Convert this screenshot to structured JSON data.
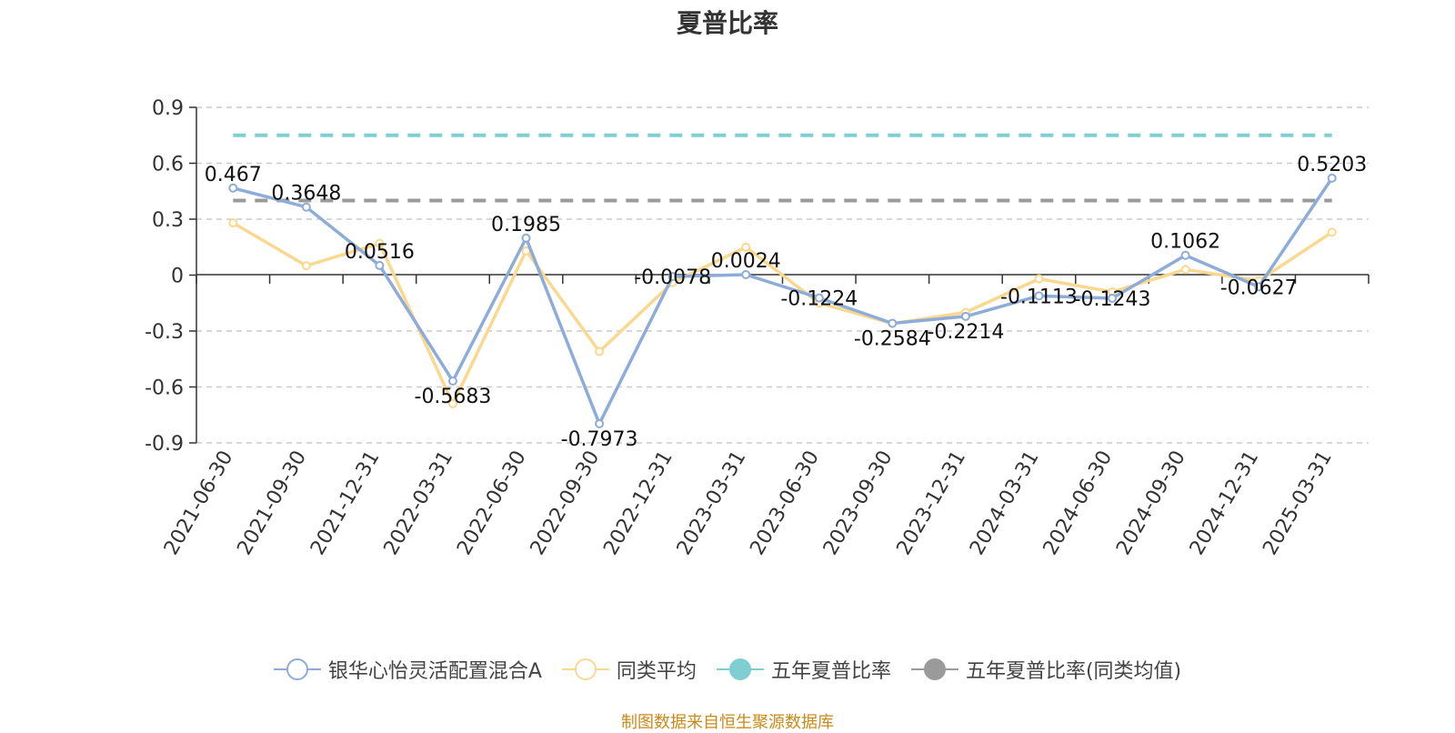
{
  "title": "夏普比率",
  "source": "制图数据来自恒生聚源数据库",
  "chart_data": {
    "type": "line",
    "categories": [
      "2021-06-30",
      "2021-09-30",
      "2021-12-31",
      "2022-03-31",
      "2022-06-30",
      "2022-09-30",
      "2022-12-31",
      "2023-03-31",
      "2023-06-30",
      "2023-09-30",
      "2023-12-31",
      "2024-03-31",
      "2024-06-30",
      "2024-09-30",
      "2024-12-31",
      "2025-03-31"
    ],
    "ylim": [
      -0.9,
      0.9
    ],
    "yticks": [
      "0.9",
      "0.6",
      "0.3",
      "0",
      "-0.3",
      "-0.6",
      "-0.9"
    ],
    "grid": true,
    "legend_position": "bottom",
    "series": [
      {
        "name": "银华心怡灵活配置混合A",
        "color": "#8eacd8",
        "values": [
          0.467,
          0.3648,
          0.0516,
          -0.5683,
          0.1985,
          -0.7973,
          -0.0078,
          0.0024,
          -0.1224,
          -0.2584,
          -0.2214,
          -0.1113,
          -0.1243,
          0.1062,
          -0.0627,
          0.5203
        ],
        "labels": [
          "0.467",
          "0.3648",
          "0.0516",
          "-0.5683",
          "0.1985",
          "-0.7973",
          "-0.0078",
          "0.0024",
          "-0.1224",
          "-0.2584",
          "-0.2214",
          "-0.1113",
          "-0.1243",
          "0.1062",
          "-0.0627",
          "0.5203"
        ]
      },
      {
        "name": "同类平均",
        "color": "#fad88f",
        "values": [
          0.28,
          0.05,
          0.17,
          -0.69,
          0.13,
          -0.41,
          -0.04,
          0.15,
          -0.15,
          -0.26,
          -0.2,
          -0.02,
          -0.09,
          0.03,
          -0.03,
          0.23
        ]
      },
      {
        "name": "五年夏普比率",
        "color": "#7fcfd2",
        "dashed": true,
        "value": 0.75
      },
      {
        "name": "五年夏普比率(同类均值)",
        "color": "#9a9a9a",
        "dashed": true,
        "value": 0.4
      }
    ]
  }
}
